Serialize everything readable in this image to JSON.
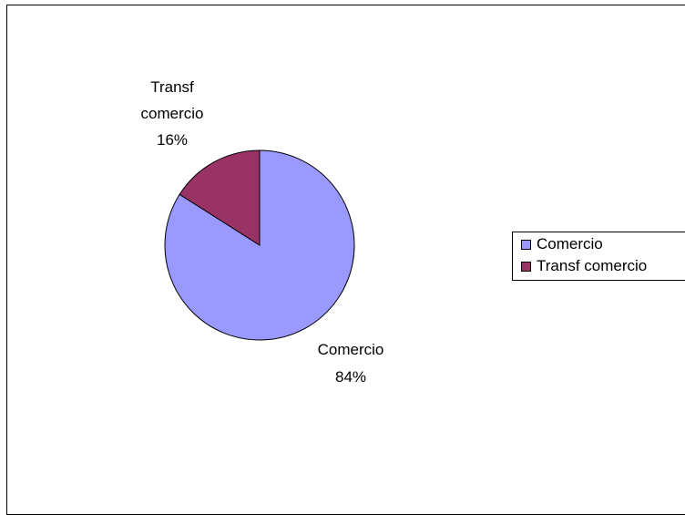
{
  "chart_data": {
    "type": "pie",
    "title": "",
    "slices": [
      {
        "label": "Comercio",
        "value": 84,
        "percent_label": "84%",
        "color": "#9999FF"
      },
      {
        "label": "Transf comercio",
        "value": 16,
        "percent_label": "16%",
        "color": "#993366"
      }
    ],
    "data_labels": [
      {
        "lines": [
          "Comercio",
          "84%"
        ]
      },
      {
        "lines": [
          "Transf",
          "comercio",
          "16%"
        ]
      }
    ],
    "legend": {
      "placement": "right",
      "entries": [
        "Comercio",
        "Transf comercio"
      ]
    },
    "border_color": "#000000",
    "slice_border_color": "#000000"
  }
}
